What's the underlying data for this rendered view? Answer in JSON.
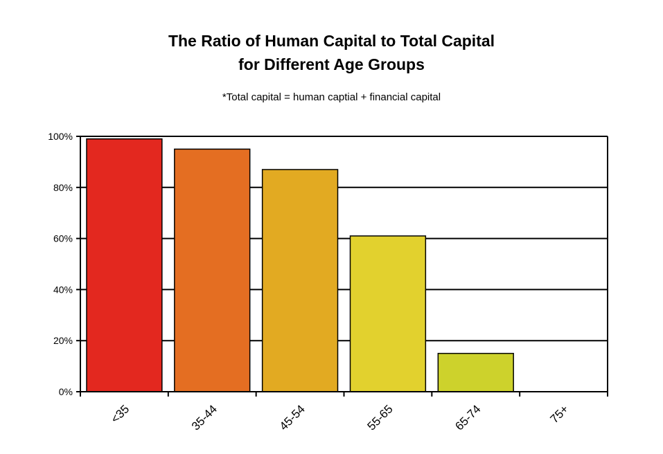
{
  "chart_data": {
    "type": "bar",
    "title_line1": "The Ratio of Human Capital to Total Capital",
    "title_line2": "for Different Age Groups",
    "subtitle": "*Total capital = human captial + financial capital",
    "xlabel": "",
    "ylabel": "",
    "categories": [
      "<35",
      "35-44",
      "45-54",
      "55-65",
      "65-74",
      "75+"
    ],
    "values": [
      99,
      95,
      87,
      61,
      15,
      0
    ],
    "ylim": [
      0,
      100
    ],
    "yticks": [
      0,
      20,
      40,
      60,
      80,
      100
    ],
    "ytick_labels": [
      "0%",
      "20%",
      "40%",
      "60%",
      "80%",
      "100%"
    ],
    "grid": true,
    "legend": "none",
    "colors": [
      "#e3281f",
      "#e46e22",
      "#e2aa22",
      "#e2d12e",
      "#cdd22c",
      "#cdd22c"
    ]
  }
}
